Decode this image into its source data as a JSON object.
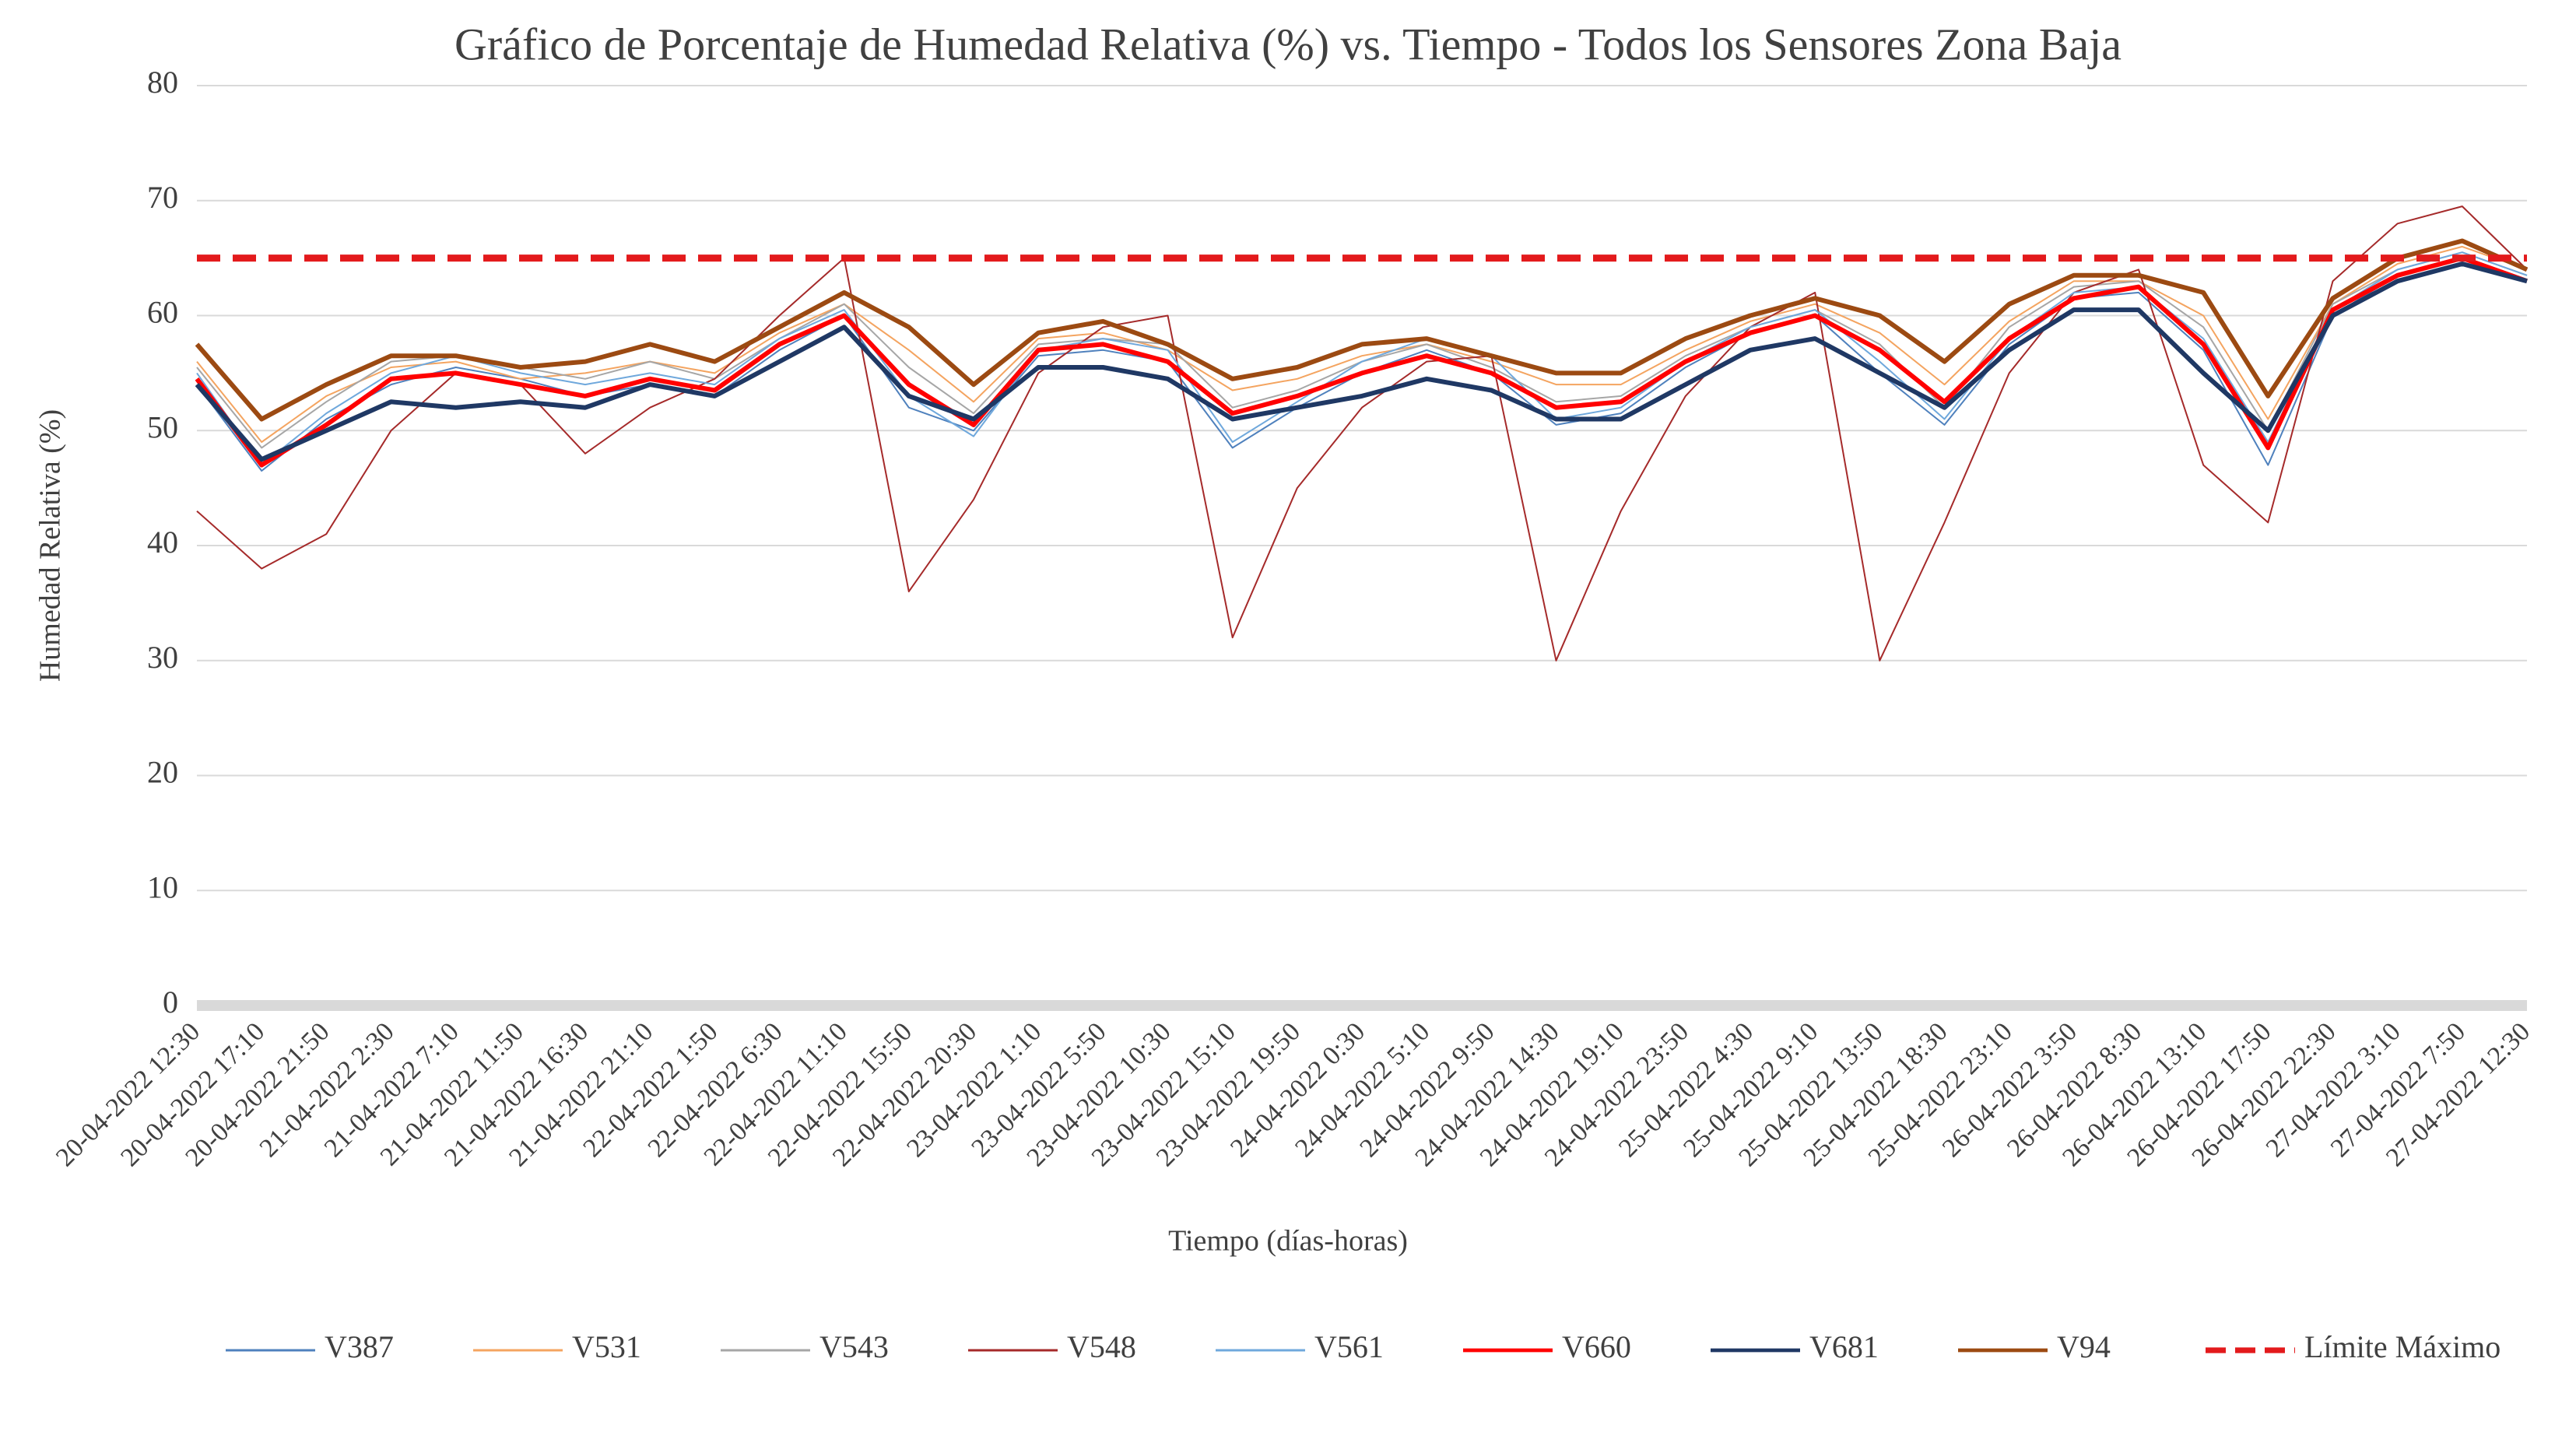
{
  "chart_data": {
    "type": "line",
    "title": "Gráfico de Porcentaje de Humedad Relativa (%) vs. Tiempo - Todos los Sensores Zona Baja",
    "x_label": "Tiempo (días-horas)",
    "y_label": "Humedad Relativa (%)",
    "categories": [
      "20-04-2022 12:30",
      "20-04-2022 17:10",
      "20-04-2022 21:50",
      "21-04-2022 2:30",
      "21-04-2022 7:10",
      "21-04-2022 11:50",
      "21-04-2022 16:30",
      "21-04-2022 21:10",
      "22-04-2022 1:50",
      "22-04-2022 6:30",
      "22-04-2022 11:10",
      "22-04-2022 15:50",
      "22-04-2022 20:30",
      "23-04-2022 1:10",
      "23-04-2022 5:50",
      "23-04-2022 10:30",
      "23-04-2022 15:10",
      "23-04-2022 19:50",
      "24-04-2022 0:30",
      "24-04-2022 5:10",
      "24-04-2022 9:50",
      "24-04-2022 14:30",
      "24-04-2022 19:10",
      "24-04-2022 23:50",
      "25-04-2022 4:30",
      "25-04-2022 9:10",
      "25-04-2022 13:50",
      "25-04-2022 18:30",
      "25-04-2022 23:10",
      "26-04-2022 3:50",
      "26-04-2022 8:30",
      "26-04-2022 13:10",
      "26-04-2022 17:50",
      "26-04-2022 22:30",
      "27-04-2022 3:10",
      "27-04-2022 7:50",
      "27-04-2022 12:30"
    ],
    "ylim": [
      0,
      80
    ],
    "yticks": [
      0,
      10,
      20,
      30,
      40,
      50,
      60,
      70,
      80
    ],
    "grid": true,
    "legend": "bottom",
    "series": [
      {
        "name": "V387",
        "color": "#4f81bd",
        "width": 2,
        "values": [
          54,
          46.5,
          51,
          54,
          55.5,
          54.5,
          53,
          54,
          53,
          57,
          60,
          52,
          50,
          56.5,
          57,
          56,
          48.5,
          52,
          55,
          57,
          55,
          50.5,
          51.5,
          55.5,
          58.5,
          60,
          55,
          50.5,
          57.5,
          61.5,
          62,
          57,
          47,
          60,
          63.5,
          65,
          63
        ]
      },
      {
        "name": "V531",
        "color": "#f4a460",
        "width": 2,
        "values": [
          56,
          49,
          53,
          55.5,
          56,
          54.5,
          55,
          56,
          55,
          58.5,
          61,
          57,
          52.5,
          58,
          58.5,
          57,
          53.5,
          54.5,
          56.5,
          57.5,
          56,
          54,
          54,
          57,
          59.5,
          61,
          58.5,
          54,
          59.5,
          63,
          63,
          60,
          51,
          61,
          64.5,
          66,
          64
        ]
      },
      {
        "name": "V543",
        "color": "#a6a6a6",
        "width": 2,
        "values": [
          55.5,
          48.5,
          52.5,
          56,
          56.5,
          55.5,
          54.5,
          56,
          54.5,
          58,
          61,
          55.5,
          51.5,
          57.5,
          58,
          57.5,
          52,
          53.5,
          56,
          57.5,
          55.5,
          52.5,
          53,
          56.5,
          59,
          60.5,
          57.5,
          52,
          59,
          62.5,
          63,
          59,
          50,
          61,
          64,
          65.5,
          63.5
        ]
      },
      {
        "name": "V548",
        "color": "#a52a2a",
        "width": 2,
        "values": [
          43,
          38,
          41,
          50,
          55,
          54,
          48,
          52,
          54.5,
          60,
          65,
          36,
          44,
          55,
          59,
          60,
          32,
          45,
          52,
          56,
          56.5,
          30,
          43,
          53,
          59,
          62,
          30,
          42,
          55,
          62,
          64,
          47,
          42,
          63,
          68,
          69.5,
          64
        ]
      },
      {
        "name": "V561",
        "color": "#6fa8dc",
        "width": 2,
        "values": [
          55,
          47,
          51.5,
          55,
          56.5,
          55,
          54,
          55,
          54,
          58,
          60.5,
          53,
          49.5,
          57,
          58,
          57,
          49,
          52.5,
          56,
          58,
          56.5,
          51,
          52,
          56,
          59,
          60.5,
          56,
          51,
          58,
          62,
          62.5,
          58,
          49,
          60.5,
          64,
          65.5,
          63.5
        ]
      },
      {
        "name": "V660",
        "color": "#ff0000",
        "width": 6,
        "values": [
          54.5,
          47,
          50.5,
          54.5,
          55,
          54,
          53,
          54.5,
          53.5,
          57.5,
          60,
          54,
          50.5,
          57,
          57.5,
          56,
          51.5,
          53,
          55,
          56.5,
          55,
          52,
          52.5,
          56,
          58.5,
          60,
          57,
          52.5,
          58,
          61.5,
          62.5,
          57.5,
          48.5,
          60.5,
          63.5,
          65,
          63
        ]
      },
      {
        "name": "V681",
        "color": "#1f3864",
        "width": 6,
        "values": [
          54,
          47.5,
          50,
          52.5,
          52,
          52.5,
          52,
          54,
          53,
          56,
          59,
          53,
          51,
          55.5,
          55.5,
          54.5,
          51,
          52,
          53,
          54.5,
          53.5,
          51,
          51,
          54,
          57,
          58,
          55,
          52,
          57,
          60.5,
          60.5,
          55,
          50,
          60,
          63,
          64.5,
          63
        ]
      },
      {
        "name": "V94",
        "color": "#9c4a12",
        "width": 6,
        "values": [
          57.5,
          51,
          54,
          56.5,
          56.5,
          55.5,
          56,
          57.5,
          56,
          59,
          62,
          59,
          54,
          58.5,
          59.5,
          57.5,
          54.5,
          55.5,
          57.5,
          58,
          56.5,
          55,
          55,
          58,
          60,
          61.5,
          60,
          56,
          61,
          63.5,
          63.5,
          62,
          53,
          61.5,
          65,
          66.5,
          64
        ]
      },
      {
        "name": "Límite Máximo",
        "color": "#e31a1c",
        "width": 9,
        "dash": true,
        "values": [
          65,
          65,
          65,
          65,
          65,
          65,
          65,
          65,
          65,
          65,
          65,
          65,
          65,
          65,
          65,
          65,
          65,
          65,
          65,
          65,
          65,
          65,
          65,
          65,
          65,
          65,
          65,
          65,
          65,
          65,
          65,
          65,
          65,
          65,
          65,
          65,
          65
        ]
      }
    ]
  }
}
